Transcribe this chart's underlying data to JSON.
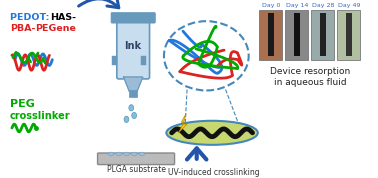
{
  "bg_color": "#ffffff",
  "pedot_color": "#2277DD",
  "has_color": "#000000",
  "pba_color": "#DD2222",
  "peg_color": "#00AA00",
  "ink_label": "Ink",
  "plga_label": "PLGA substrate",
  "uv_label": "UV-induced crosslinking",
  "device_label1": "Device resorption",
  "device_label2": "in aqueous fluid",
  "day_labels": [
    "Day 0",
    "Day 14",
    "Day 28",
    "Day 49"
  ],
  "day_label_color": "#3366CC",
  "arrow_color": "#2255AA",
  "syringe_body_color": "#9BBBD8",
  "syringe_dark_color": "#6699BB",
  "syringe_light_color": "#C8DDEE",
  "substrate_color": "#BBBBBB",
  "substrate_border": "#888888",
  "ellipse_fill": "#C8D870",
  "ellipse_stroke": "#4488BB",
  "polymer_colors": [
    "#2277DD",
    "#DD2222",
    "#00AA00"
  ],
  "lightning_color": "#FFCC00",
  "water_drop_color": "#88BBDD",
  "figsize": [
    3.78,
    1.78
  ],
  "dpi": 100
}
